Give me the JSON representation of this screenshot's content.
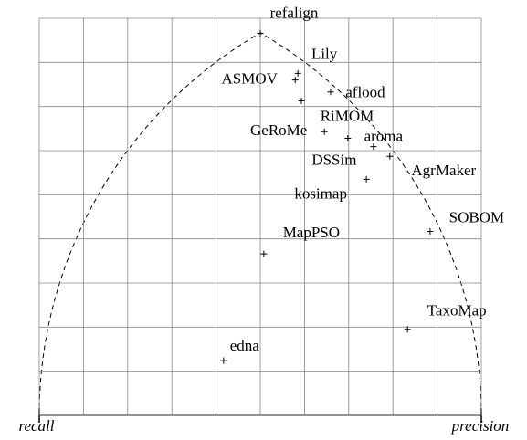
{
  "chart_data": {
    "type": "scatter",
    "labels": [
      "refalign",
      "Lily",
      "ASMOV",
      "aflood",
      "RiMOM",
      "GeRoMe",
      "aroma",
      "DSSim",
      "AgrMaker",
      "kosimap",
      "SOBOM",
      "MapPSO",
      "TaxoMap",
      "edna"
    ],
    "x": [
      0.5,
      0.585,
      0.579,
      0.659,
      0.593,
      0.645,
      0.698,
      0.756,
      0.793,
      0.74,
      0.884,
      0.508,
      0.833,
      0.417
    ],
    "values": [
      0.866,
      0.775,
      0.76,
      0.733,
      0.713,
      0.643,
      0.628,
      0.609,
      0.587,
      0.535,
      0.417,
      0.366,
      0.195,
      0.124
    ],
    "xlim": [
      0,
      1
    ],
    "ylim": [
      0,
      0.9
    ],
    "xticks": [
      0,
      0.1,
      0.2,
      0.3,
      0.4,
      0.5,
      0.6,
      0.7,
      0.8,
      0.9,
      1
    ],
    "yticks": [
      0,
      0.1,
      0.2,
      0.3,
      0.4,
      0.5,
      0.6,
      0.7,
      0.8,
      0.9
    ],
    "grid": true,
    "x_start_label": "recall",
    "x_end_label": "precision"
  }
}
